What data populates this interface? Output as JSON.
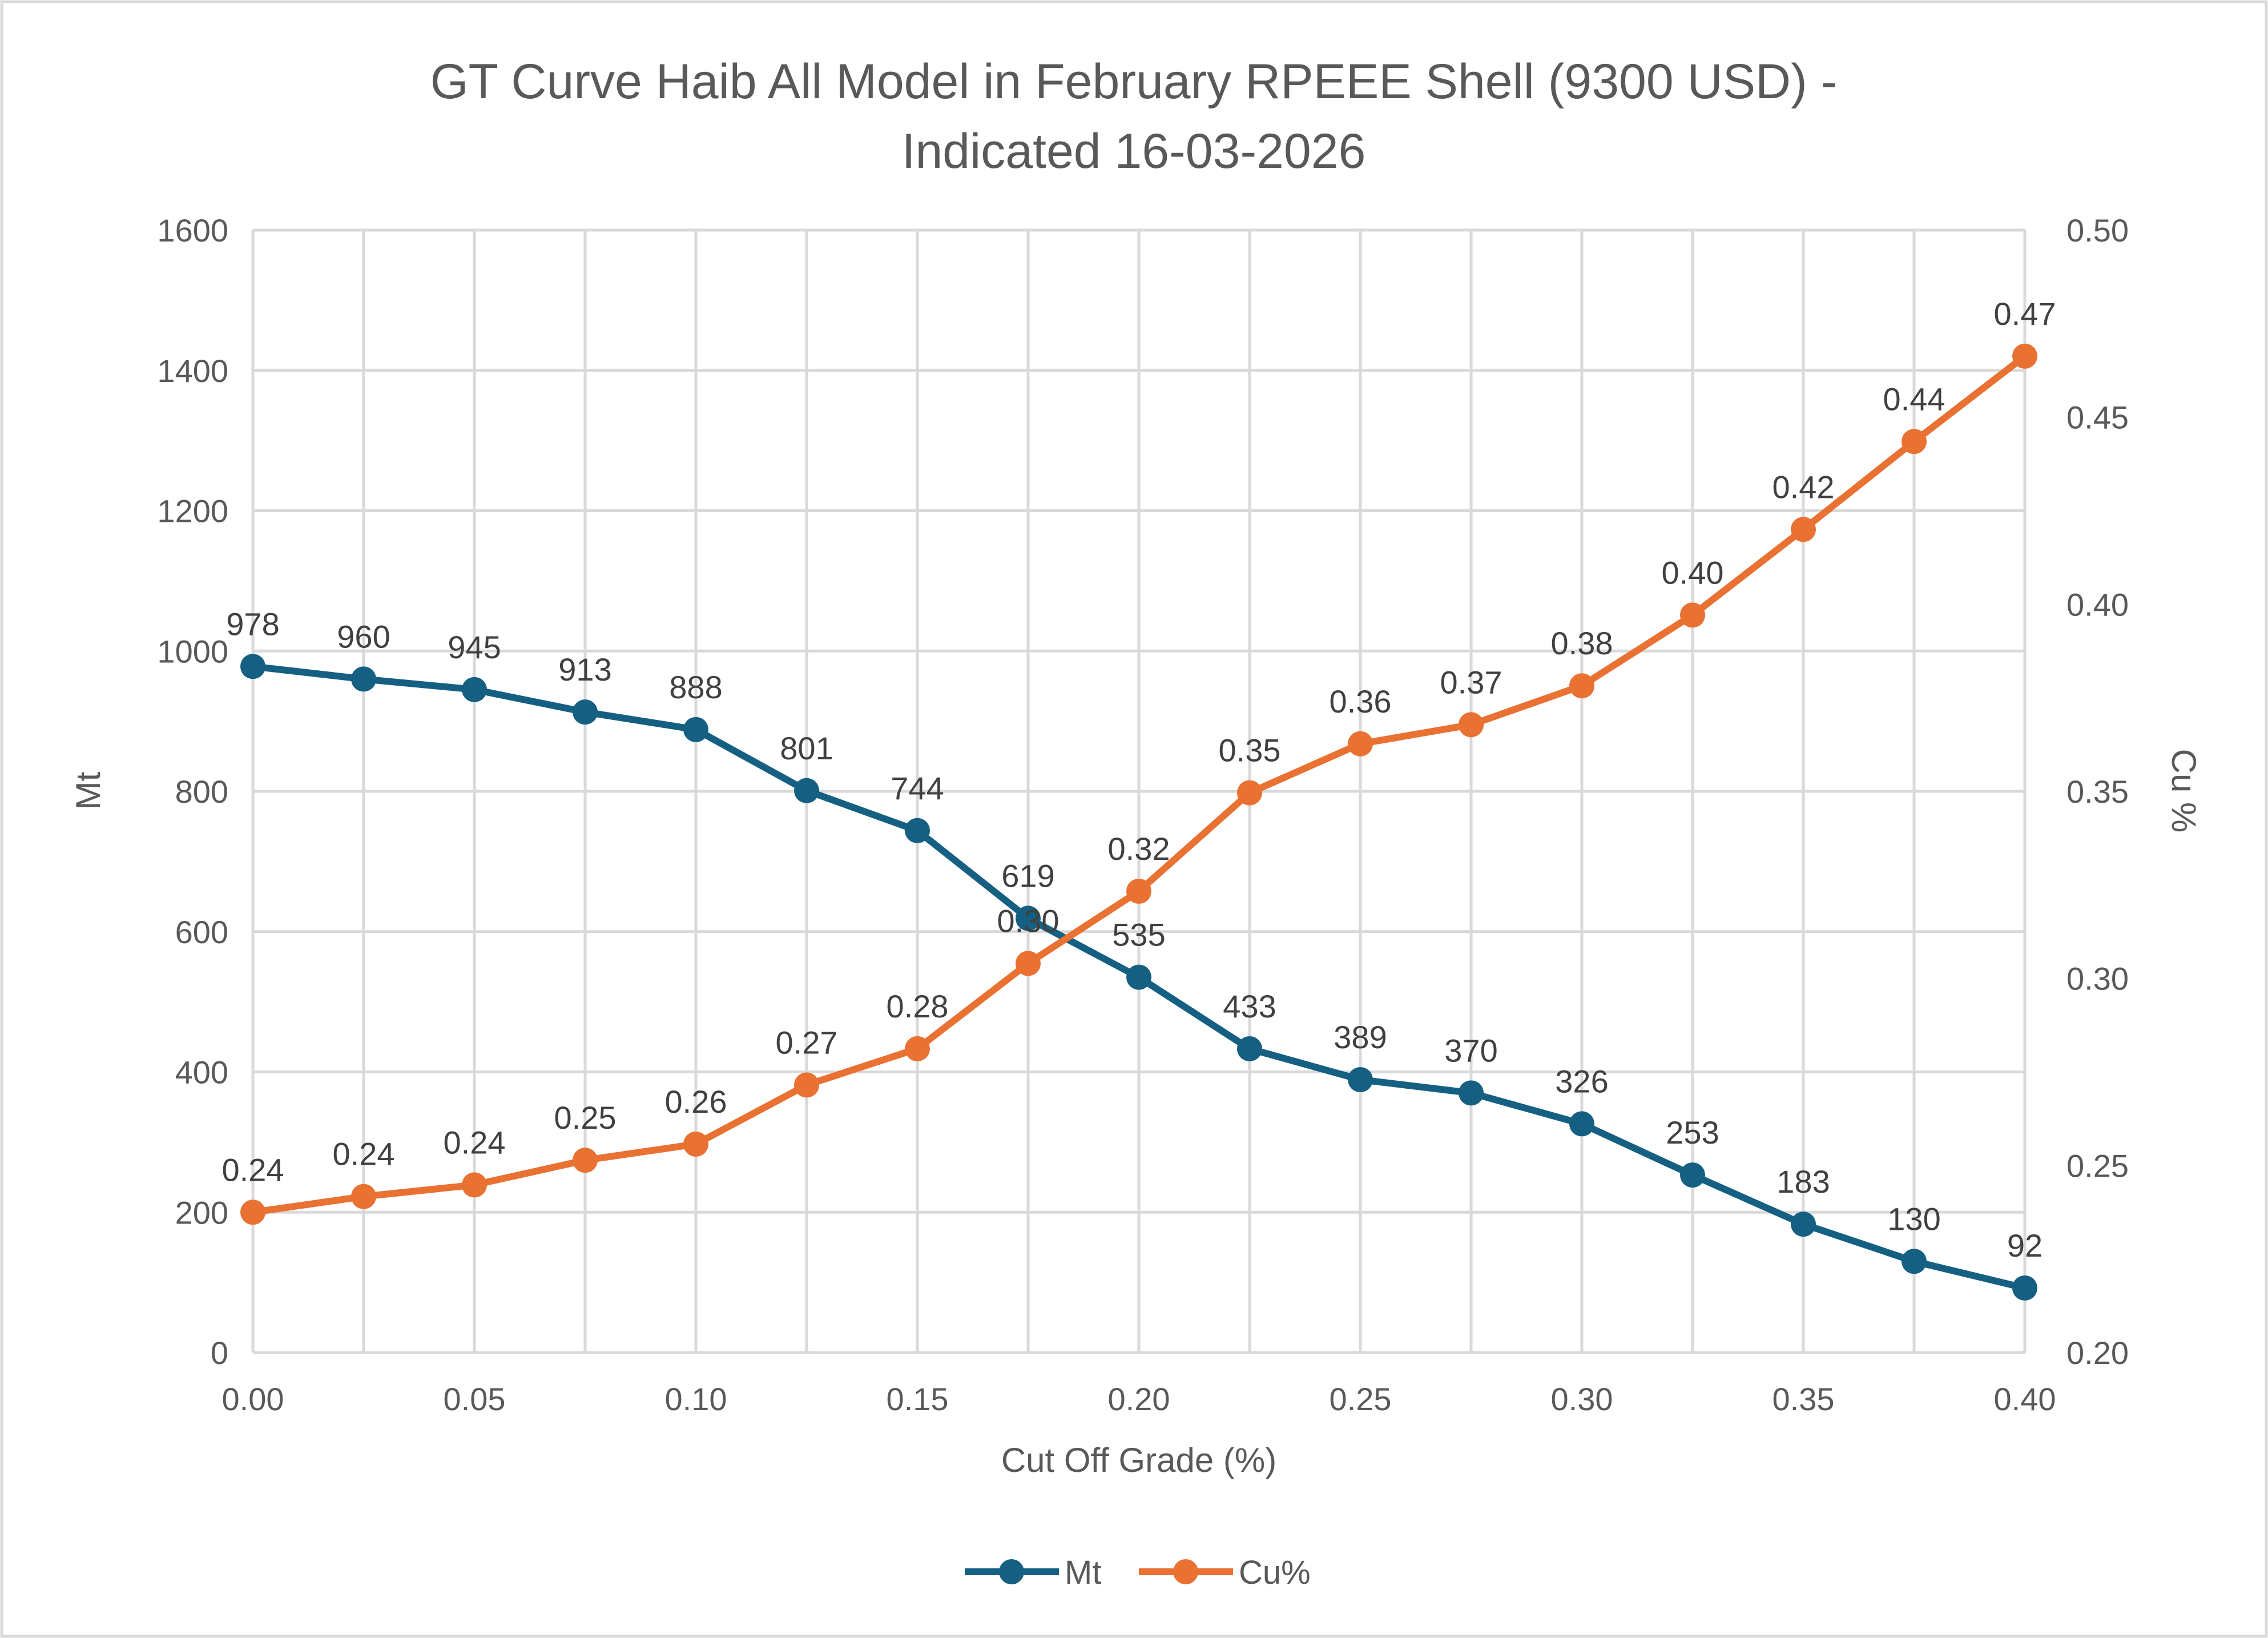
{
  "chart_data": {
    "type": "line",
    "title_line1": "GT Curve Haib All Model in February RPEEE Shell (9300 USD) -",
    "title_line2": "Indicated 16-03-2026",
    "xlabel": "Cut Off Grade (%)",
    "ylabel": "Mt",
    "y2label": "Cu %",
    "xlim": [
      0,
      0.4
    ],
    "ylim": [
      0,
      1600
    ],
    "y2lim": [
      0.2,
      0.5
    ],
    "x_ticks": [
      "0.00",
      "0.05",
      "0.10",
      "0.15",
      "0.20",
      "0.25",
      "0.30",
      "0.35",
      "0.40"
    ],
    "y_ticks": [
      "0",
      "200",
      "400",
      "600",
      "800",
      "1000",
      "1200",
      "1400",
      "1600"
    ],
    "y2_ticks": [
      "0.20",
      "0.25",
      "0.30",
      "0.35",
      "0.40",
      "0.45",
      "0.50"
    ],
    "grid": true,
    "legend_position": "bottom",
    "x": [
      0,
      0.025,
      0.05,
      0.075,
      0.1,
      0.125,
      0.15,
      0.175,
      0.2,
      0.225,
      0.25,
      0.275,
      0.3,
      0.325,
      0.35,
      0.375,
      0.4
    ],
    "series": [
      {
        "name": "Mt",
        "axis": "left",
        "color": "#156082",
        "values": [
          978,
          960,
          945,
          913,
          888,
          801,
          744,
          619,
          535,
          433,
          389,
          370,
          326,
          253,
          183,
          130,
          92
        ],
        "labels": [
          "978",
          "960",
          "945",
          "913",
          "888",
          "801",
          "744",
          "619",
          "535",
          "433",
          "389",
          "370",
          "326",
          "253",
          "183",
          "130",
          "92"
        ]
      },
      {
        "name": "Cu%",
        "axis": "right",
        "color": "#e97132",
        "values": [
          0.2375,
          0.2417,
          0.2448,
          0.2514,
          0.2557,
          0.2715,
          0.2812,
          0.304,
          0.3233,
          0.3496,
          0.3627,
          0.3678,
          0.3782,
          0.3971,
          0.42,
          0.4435,
          0.4663
        ],
        "labels": [
          "0.24",
          "0.24",
          "0.24",
          "0.25",
          "0.26",
          "0.27",
          "0.28",
          "0.30",
          "0.32",
          "0.35",
          "0.36",
          "0.37",
          "0.38",
          "0.40",
          "0.42",
          "0.44",
          "0.47"
        ]
      }
    ]
  }
}
